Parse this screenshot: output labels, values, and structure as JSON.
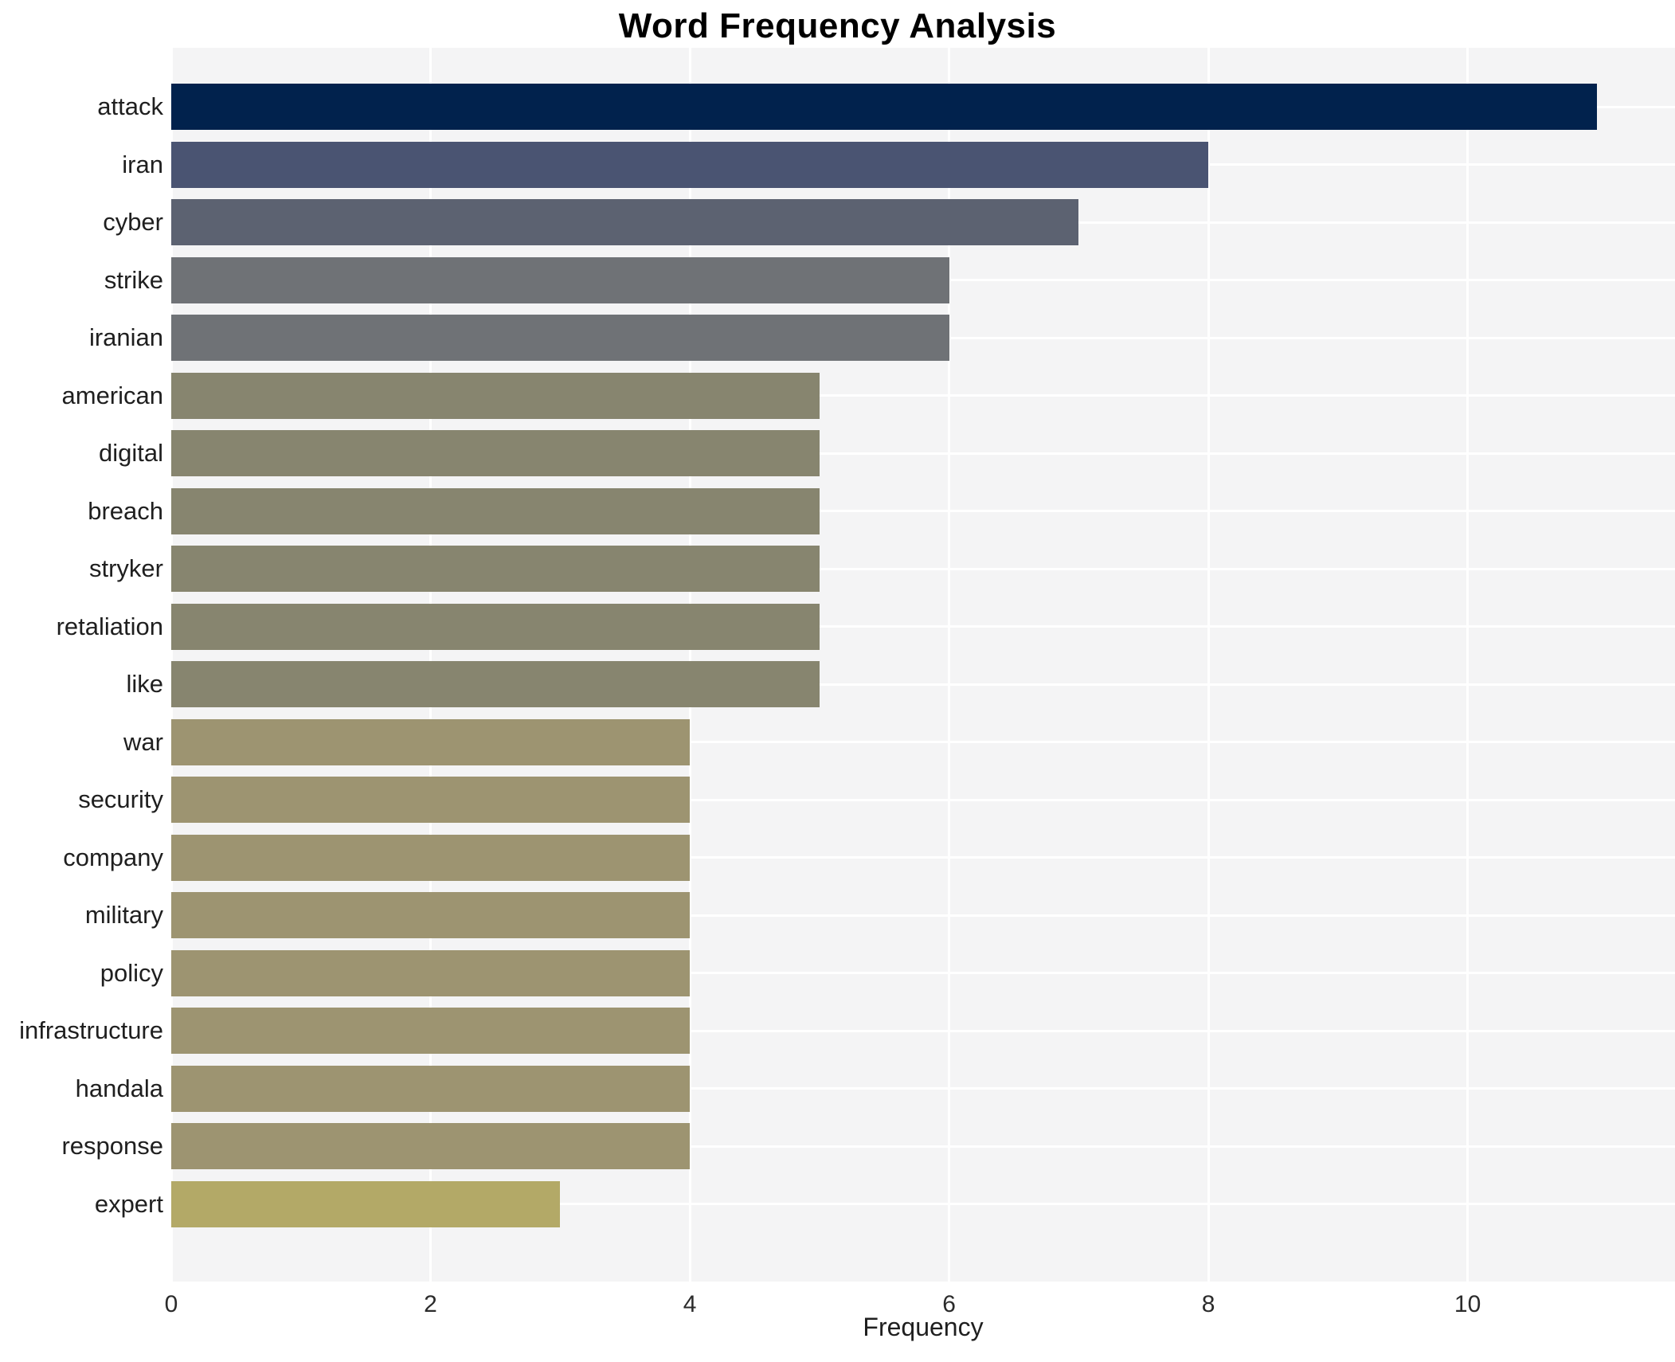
{
  "chart_data": {
    "type": "bar",
    "orientation": "horizontal",
    "title": "Word Frequency Analysis",
    "xlabel": "Frequency",
    "ylabel": "",
    "categories": [
      "attack",
      "iran",
      "cyber",
      "strike",
      "iranian",
      "american",
      "digital",
      "breach",
      "stryker",
      "retaliation",
      "like",
      "war",
      "security",
      "company",
      "military",
      "policy",
      "infrastructure",
      "handala",
      "response",
      "expert"
    ],
    "values": [
      11,
      8,
      7,
      6,
      6,
      5,
      5,
      5,
      5,
      5,
      5,
      4,
      4,
      4,
      4,
      4,
      4,
      4,
      4,
      3
    ],
    "bar_colors": [
      "#01224d",
      "#4a5472",
      "#5c6271",
      "#6f7276",
      "#6f7276",
      "#87856f",
      "#87856f",
      "#87856f",
      "#87856f",
      "#87856f",
      "#87856f",
      "#9d9471",
      "#9d9471",
      "#9d9471",
      "#9d9471",
      "#9d9471",
      "#9d9471",
      "#9d9471",
      "#9d9471",
      "#b3a967"
    ],
    "xticks": [
      0,
      2,
      4,
      6,
      8,
      10
    ],
    "xlim": [
      0,
      11.6
    ],
    "grid": true,
    "legend": false,
    "plot_background": "#f4f4f5",
    "grid_color": "#ffffff",
    "title_color": "#000000",
    "axis_text_color": "#2b2b2b"
  }
}
